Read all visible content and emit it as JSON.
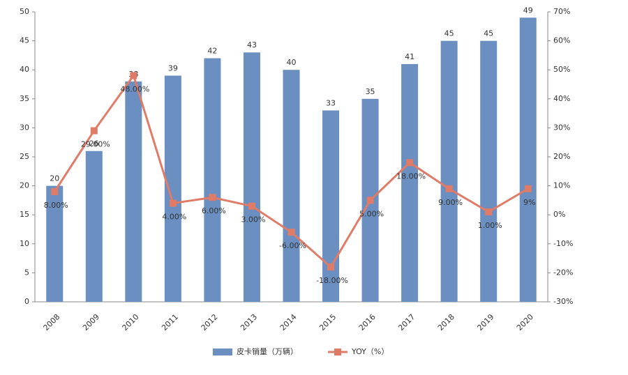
{
  "chart_data": {
    "type": "bar",
    "categories": [
      "2008",
      "2009",
      "2010",
      "2011",
      "2012",
      "2013",
      "2014",
      "2015",
      "2016",
      "2017",
      "2018",
      "2019",
      "2020"
    ],
    "series": [
      {
        "name": "皮卡销量（万辆）",
        "type": "bar",
        "color": "#6a8fc0",
        "values": [
          20,
          26,
          38,
          39,
          42,
          43,
          40,
          33,
          35,
          41,
          45,
          45,
          49
        ]
      },
      {
        "name": "YOY（%）",
        "type": "line",
        "axis": "y2",
        "color": "#e07b67",
        "values": [
          8,
          29,
          48,
          4,
          6,
          3,
          -6,
          -18,
          5,
          18,
          9,
          1,
          9
        ],
        "value_labels": [
          "8.00%",
          "29.00%",
          "48.00%",
          "4.00%",
          "6.00%",
          "3.00%",
          "-6.00%",
          "-18.00%",
          "5.00%",
          "18.00%",
          "9.00%",
          "1.00%",
          "9%"
        ]
      }
    ],
    "ylim": [
      0,
      50
    ],
    "yticks": [
      0,
      5,
      10,
      15,
      20,
      25,
      30,
      35,
      40,
      45,
      50
    ],
    "y2lim": [
      -30,
      70
    ],
    "y2ticks": [
      {
        "value": 70,
        "label": "70%"
      },
      {
        "value": 60,
        "label": "60%"
      },
      {
        "value": 50,
        "label": "50%"
      },
      {
        "value": 40,
        "label": "40%"
      },
      {
        "value": 30,
        "label": "30%"
      },
      {
        "value": 20,
        "label": "20%"
      },
      {
        "value": 10,
        "label": "10%"
      },
      {
        "value": 0,
        "label": "0%"
      },
      {
        "value": -10,
        "label": "-10%"
      },
      {
        "value": -20,
        "label": "-20%"
      },
      {
        "value": -30,
        "label": "-30%"
      }
    ],
    "grid": false
  }
}
